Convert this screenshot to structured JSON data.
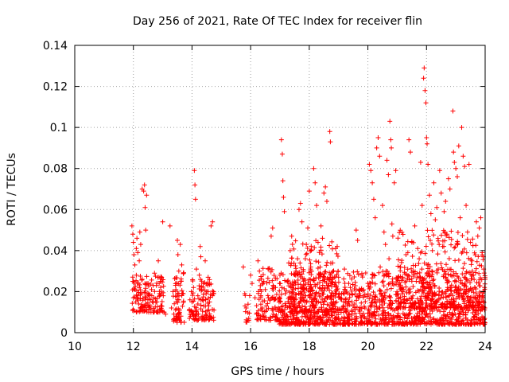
{
  "chart_data": {
    "type": "scatter",
    "title": "Day 256 of 2021, Rate Of TEC Index for receiver flin",
    "xlabel": "GPS time / hours",
    "ylabel": "ROTI / TECUs",
    "xlim": [
      10,
      24
    ],
    "ylim": [
      0,
      0.14
    ],
    "x_ticks": [
      10,
      12,
      14,
      16,
      18,
      20,
      22,
      24
    ],
    "x_tick_labels": [
      "10",
      "12",
      "14",
      "16",
      "18",
      "20",
      "22",
      "24"
    ],
    "y_ticks": [
      0,
      0.02,
      0.04,
      0.06,
      0.08,
      0.1,
      0.12,
      0.14
    ],
    "y_tick_labels": [
      "0",
      "0.02",
      "0.04",
      "0.06",
      "0.08",
      "0.1",
      "0.12",
      "0.14"
    ],
    "grid": true,
    "marker": "plus",
    "marker_color": "#ff0000",
    "series": [
      {
        "points": [
          [
            11.95,
            0.052
          ],
          [
            11.98,
            0.048
          ],
          [
            12.0,
            0.044
          ],
          [
            12.02,
            0.038
          ],
          [
            12.05,
            0.033
          ],
          [
            12.05,
            0.021
          ],
          [
            12.0,
            0.017
          ],
          [
            11.98,
            0.025
          ],
          [
            12.08,
            0.015
          ],
          [
            12.1,
            0.028
          ],
          [
            12.1,
            0.041
          ],
          [
            12.12,
            0.046
          ],
          [
            12.15,
            0.039
          ],
          [
            12.15,
            0.018
          ],
          [
            12.18,
            0.014
          ],
          [
            12.2,
            0.022
          ],
          [
            12.2,
            0.035
          ],
          [
            12.22,
            0.049
          ],
          [
            12.25,
            0.043
          ],
          [
            12.25,
            0.012
          ],
          [
            12.28,
            0.019
          ],
          [
            12.3,
            0.026
          ],
          [
            12.3,
            0.07
          ],
          [
            12.35,
            0.069
          ],
          [
            12.38,
            0.072
          ],
          [
            12.4,
            0.061
          ],
          [
            12.42,
            0.05
          ],
          [
            12.45,
            0.067
          ],
          [
            12.4,
            0.016
          ],
          [
            12.45,
            0.011
          ],
          [
            12.5,
            0.024
          ],
          [
            12.5,
            0.013
          ],
          [
            12.55,
            0.018
          ],
          [
            12.6,
            0.01
          ],
          [
            12.62,
            0.021
          ],
          [
            12.7,
            0.017
          ],
          [
            12.72,
            0.029
          ],
          [
            12.8,
            0.015
          ],
          [
            12.85,
            0.035
          ],
          [
            12.88,
            0.024
          ],
          [
            12.95,
            0.013
          ],
          [
            13.0,
            0.054
          ],
          [
            13.02,
            0.018
          ],
          [
            13.1,
            0.009
          ],
          [
            13.25,
            0.052
          ],
          [
            13.3,
            0.012
          ],
          [
            13.35,
            0.02
          ],
          [
            13.38,
            0.009
          ],
          [
            13.42,
            0.006
          ],
          [
            13.45,
            0.021
          ],
          [
            13.5,
            0.045
          ],
          [
            13.52,
            0.038
          ],
          [
            13.55,
            0.03
          ],
          [
            13.55,
            0.016
          ],
          [
            13.58,
            0.011
          ],
          [
            13.6,
            0.043
          ],
          [
            13.62,
            0.025
          ],
          [
            13.62,
            0.005
          ],
          [
            13.65,
            0.033
          ],
          [
            13.7,
            0.019
          ],
          [
            13.95,
            0.008
          ],
          [
            14.0,
            0.015
          ],
          [
            14.05,
            0.022
          ],
          [
            14.08,
            0.079
          ],
          [
            14.1,
            0.072
          ],
          [
            14.12,
            0.065
          ],
          [
            14.15,
            0.031
          ],
          [
            14.15,
            0.011
          ],
          [
            14.2,
            0.018
          ],
          [
            14.22,
            0.009
          ],
          [
            14.25,
            0.028
          ],
          [
            14.28,
            0.042
          ],
          [
            14.3,
            0.037
          ],
          [
            14.35,
            0.016
          ],
          [
            14.38,
            0.024
          ],
          [
            14.4,
            0.013
          ],
          [
            14.45,
            0.035
          ],
          [
            14.5,
            0.02
          ],
          [
            14.55,
            0.027
          ],
          [
            14.6,
            0.015
          ],
          [
            14.65,
            0.052
          ],
          [
            14.7,
            0.054
          ],
          [
            14.7,
            0.018
          ],
          [
            14.75,
            0.011
          ],
          [
            15.75,
            0.032
          ],
          [
            15.8,
            0.019
          ],
          [
            15.85,
            0.012
          ],
          [
            15.9,
            0.006
          ],
          [
            16.0,
            0.028
          ],
          [
            16.05,
            0.024
          ],
          [
            16.15,
            0.017
          ],
          [
            16.2,
            0.009
          ],
          [
            16.25,
            0.035
          ],
          [
            16.3,
            0.03
          ],
          [
            16.35,
            0.018
          ],
          [
            16.4,
            0.012
          ],
          [
            16.45,
            0.025
          ],
          [
            16.5,
            0.021
          ],
          [
            16.55,
            0.011
          ],
          [
            16.6,
            0.031
          ],
          [
            16.7,
            0.047
          ],
          [
            16.75,
            0.051
          ],
          [
            16.8,
            0.016
          ],
          [
            16.85,
            0.022
          ],
          [
            16.95,
            0.012
          ],
          [
            17.0,
            0.028
          ],
          [
            17.05,
            0.094
          ],
          [
            17.08,
            0.087
          ],
          [
            17.1,
            0.074
          ],
          [
            17.12,
            0.066
          ],
          [
            17.15,
            0.059
          ],
          [
            17.18,
            0.019
          ],
          [
            17.2,
            0.013
          ],
          [
            17.25,
            0.025
          ],
          [
            17.3,
            0.034
          ],
          [
            17.35,
            0.04
          ],
          [
            17.4,
            0.047
          ],
          [
            17.45,
            0.021
          ],
          [
            17.5,
            0.016
          ],
          [
            17.55,
            0.03
          ],
          [
            17.6,
            0.036
          ],
          [
            17.65,
            0.06
          ],
          [
            17.7,
            0.063
          ],
          [
            17.75,
            0.054
          ],
          [
            17.8,
            0.022
          ],
          [
            17.85,
            0.015
          ],
          [
            17.9,
            0.043
          ],
          [
            17.95,
            0.051
          ],
          [
            18.0,
            0.069
          ],
          [
            18.05,
            0.032
          ],
          [
            18.1,
            0.019
          ],
          [
            18.15,
            0.08
          ],
          [
            18.2,
            0.073
          ],
          [
            18.25,
            0.062
          ],
          [
            18.3,
            0.044
          ],
          [
            18.35,
            0.028
          ],
          [
            18.4,
            0.052
          ],
          [
            18.45,
            0.046
          ],
          [
            18.5,
            0.068
          ],
          [
            18.55,
            0.071
          ],
          [
            18.6,
            0.064
          ],
          [
            18.65,
            0.023
          ],
          [
            18.7,
            0.098
          ],
          [
            18.72,
            0.093
          ],
          [
            18.75,
            0.018
          ],
          [
            18.8,
            0.034
          ],
          [
            18.9,
            0.041
          ],
          [
            19.0,
            0.027
          ],
          [
            19.1,
            0.019
          ],
          [
            19.2,
            0.031
          ],
          [
            19.3,
            0.014
          ],
          [
            19.4,
            0.022
          ],
          [
            19.5,
            0.013
          ],
          [
            19.6,
            0.05
          ],
          [
            19.65,
            0.045
          ],
          [
            19.7,
            0.019
          ],
          [
            19.8,
            0.028
          ],
          [
            19.9,
            0.012
          ],
          [
            20.0,
            0.024
          ],
          [
            20.05,
            0.082
          ],
          [
            20.1,
            0.079
          ],
          [
            20.15,
            0.073
          ],
          [
            20.2,
            0.065
          ],
          [
            20.25,
            0.056
          ],
          [
            20.3,
            0.09
          ],
          [
            20.35,
            0.095
          ],
          [
            20.4,
            0.086
          ],
          [
            20.42,
            0.032
          ],
          [
            20.45,
            0.019
          ],
          [
            20.5,
            0.062
          ],
          [
            20.55,
            0.049
          ],
          [
            20.6,
            0.043
          ],
          [
            20.62,
            0.03
          ],
          [
            20.65,
            0.084
          ],
          [
            20.7,
            0.077
          ],
          [
            20.72,
            0.036
          ],
          [
            20.75,
            0.103
          ],
          [
            20.78,
            0.094
          ],
          [
            20.8,
            0.09
          ],
          [
            20.82,
            0.053
          ],
          [
            20.85,
            0.047
          ],
          [
            20.9,
            0.073
          ],
          [
            20.95,
            0.079
          ],
          [
            21.0,
            0.026
          ],
          [
            21.05,
            0.017
          ],
          [
            21.1,
            0.032
          ],
          [
            21.2,
            0.021
          ],
          [
            21.3,
            0.038
          ],
          [
            21.4,
            0.094
          ],
          [
            21.45,
            0.088
          ],
          [
            21.5,
            0.044
          ],
          [
            21.55,
            0.03
          ],
          [
            21.6,
            0.052
          ],
          [
            21.65,
            0.025
          ],
          [
            21.7,
            0.041
          ],
          [
            21.75,
            0.036
          ],
          [
            21.8,
            0.083
          ],
          [
            21.85,
            0.062
          ],
          [
            21.9,
            0.124
          ],
          [
            21.92,
            0.129
          ],
          [
            21.95,
            0.118
          ],
          [
            21.98,
            0.112
          ],
          [
            22.0,
            0.095
          ],
          [
            22.02,
            0.092
          ],
          [
            22.05,
            0.082
          ],
          [
            22.1,
            0.067
          ],
          [
            22.15,
            0.058
          ],
          [
            22.2,
            0.04
          ],
          [
            22.25,
            0.073
          ],
          [
            22.3,
            0.055
          ],
          [
            22.35,
            0.061
          ],
          [
            22.4,
            0.031
          ],
          [
            22.45,
            0.079
          ],
          [
            22.5,
            0.068
          ],
          [
            22.55,
            0.042
          ],
          [
            22.6,
            0.059
          ],
          [
            22.65,
            0.064
          ],
          [
            22.7,
            0.048
          ],
          [
            22.75,
            0.075
          ],
          [
            22.8,
            0.07
          ],
          [
            22.9,
            0.108
          ],
          [
            22.92,
            0.088
          ],
          [
            22.95,
            0.083
          ],
          [
            23.0,
            0.08
          ],
          [
            23.05,
            0.076
          ],
          [
            23.1,
            0.091
          ],
          [
            23.15,
            0.056
          ],
          [
            23.2,
            0.1
          ],
          [
            23.25,
            0.086
          ],
          [
            23.3,
            0.081
          ],
          [
            23.35,
            0.062
          ],
          [
            23.4,
            0.049
          ],
          [
            23.45,
            0.082
          ],
          [
            23.5,
            0.044
          ],
          [
            23.55,
            0.035
          ],
          [
            23.6,
            0.028
          ],
          [
            23.65,
            0.022
          ],
          [
            23.7,
            0.054
          ],
          [
            23.75,
            0.047
          ],
          [
            23.8,
            0.051
          ],
          [
            23.85,
            0.056
          ],
          [
            23.9,
            0.039
          ],
          [
            23.95,
            0.031
          ],
          [
            24.0,
            0.026
          ],
          [
            23.92,
            0.018
          ]
        ],
        "bands": [
          {
            "x": [
              11.95,
              13.05
            ],
            "ymin": 0.01,
            "ymax": 0.028,
            "count": 130
          },
          {
            "x": [
              13.35,
              13.75
            ],
            "ymin": 0.005,
            "ymax": 0.03,
            "count": 55
          },
          {
            "x": [
              13.9,
              14.75
            ],
            "ymin": 0.006,
            "ymax": 0.026,
            "count": 110
          },
          {
            "x": [
              15.8,
              16.0
            ],
            "ymin": 0.005,
            "ymax": 0.022,
            "count": 12
          },
          {
            "x": [
              16.2,
              16.95
            ],
            "ymin": 0.006,
            "ymax": 0.032,
            "count": 90
          },
          {
            "x": [
              16.95,
              24.0
            ],
            "ymin": 0.004,
            "ymax": 0.03,
            "count": 1350
          },
          {
            "x": [
              17.3,
              19.0
            ],
            "ymin": 0.01,
            "ymax": 0.045,
            "count": 180
          },
          {
            "x": [
              21.0,
              24.0
            ],
            "ymin": 0.012,
            "ymax": 0.05,
            "count": 320
          }
        ]
      }
    ]
  }
}
